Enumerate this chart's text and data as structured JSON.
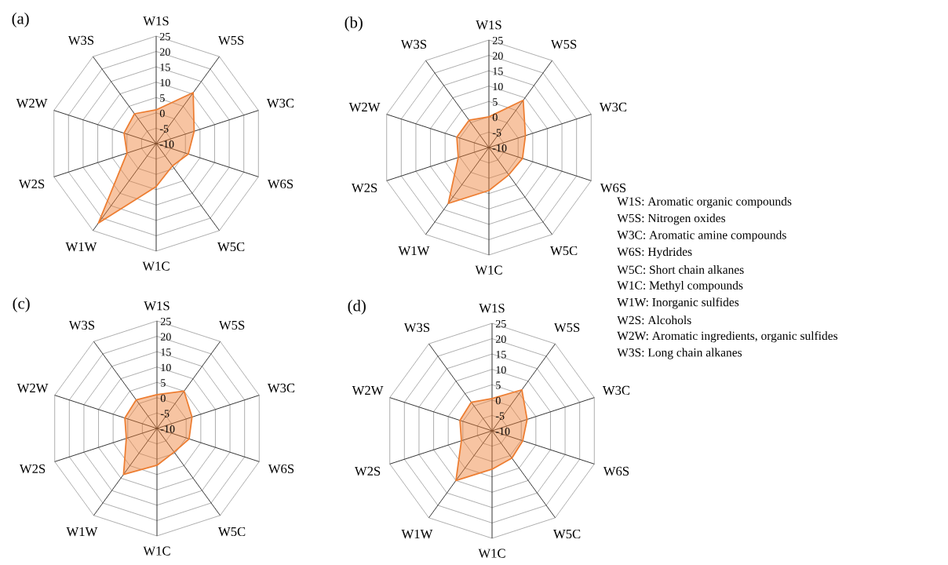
{
  "chart_data": [
    {
      "type": "radar",
      "title": "(a)",
      "categories": [
        "W1S",
        "W5S",
        "W3C",
        "W6S",
        "W5C",
        "W1C",
        "W1W",
        "W2S",
        "W2W",
        "W3S"
      ],
      "ylim": [
        -10,
        25
      ],
      "yticks": [
        -10,
        -5,
        0,
        5,
        10,
        15,
        20,
        25
      ],
      "grid": true,
      "series": [
        {
          "color": "#ed7d31",
          "values": [
            1,
            10.5,
            3,
            1,
            -1,
            4,
            22,
            0,
            1,
            2
          ]
        }
      ]
    },
    {
      "type": "radar",
      "title": "(b)",
      "categories": [
        "W1S",
        "W5S",
        "W3C",
        "W6S",
        "W5C",
        "W1C",
        "W1W",
        "W2S",
        "W2W",
        "W3S"
      ],
      "ylim": [
        -10,
        25
      ],
      "yticks": [
        -10,
        -5,
        0,
        5,
        10,
        15,
        20,
        25
      ],
      "grid": true,
      "series": [
        {
          "color": "#ed7d31",
          "values": [
            0,
            9,
            2.5,
            1.5,
            1,
            4,
            12.5,
            0.5,
            1,
            1
          ]
        }
      ]
    },
    {
      "type": "radar",
      "title": "(c)",
      "categories": [
        "W1S",
        "W5S",
        "W3C",
        "W6S",
        "W5C",
        "W1C",
        "W1W",
        "W2S",
        "W2W",
        "W3S"
      ],
      "ylim": [
        -10,
        25
      ],
      "yticks": [
        -10,
        -5,
        0,
        5,
        10,
        15,
        20,
        25
      ],
      "grid": true,
      "series": [
        {
          "color": "#ed7d31",
          "values": [
            1,
            5,
            2,
            1,
            -0.5,
            2,
            8.5,
            0.5,
            1,
            1.5
          ]
        }
      ]
    },
    {
      "type": "radar",
      "title": "(d)",
      "categories": [
        "W1S",
        "W5S",
        "W3C",
        "W6S",
        "W5C",
        "W1C",
        "W1W",
        "W2S",
        "W2W",
        "W3S"
      ],
      "ylim": [
        -10,
        25
      ],
      "yticks": [
        -10,
        -5,
        0,
        5,
        10,
        15,
        20,
        25
      ],
      "grid": true,
      "series": [
        {
          "color": "#ed7d31",
          "values": [
            0.5,
            6.5,
            2,
            0.5,
            1,
            2.5,
            10,
            0.5,
            1,
            1.5
          ]
        }
      ]
    },
    {
      "type": "other",
      "annotations": [
        "W1S: Aromatic organic compounds",
        "W5S: Nitrogen oxides",
        "W3C: Aromatic amine compounds",
        "W6S: Hydrides",
        "W5C: Short chain alkanes",
        "W1C: Methyl compounds",
        "W1W: Inorganic sulfides",
        "W2S: Alcohols",
        "W2W: Aromatic ingredients, organic sulfides",
        "W3S: Long chain alkanes"
      ]
    }
  ]
}
